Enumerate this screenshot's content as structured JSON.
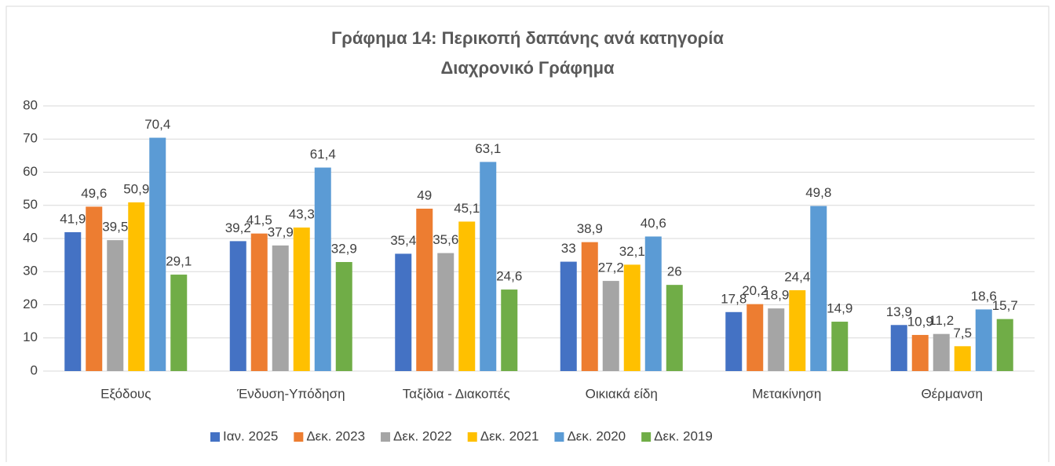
{
  "chart_data": {
    "type": "bar",
    "title": [
      "Γράφημα 14: Περικοπή δαπάνης ανά κατηγορία",
      "Διαχρονικό Γράφημα"
    ],
    "categories": [
      "Εξόδους",
      "Ένδυση-Υπόδηση",
      "Ταξίδια - Διακοπές",
      "Οικιακά είδη",
      "Μετακίνηση",
      "Θέρμανση"
    ],
    "series": [
      {
        "name": "Ιαν. 2025",
        "color": "#4472c4",
        "values": [
          41.9,
          39.2,
          35.4,
          33,
          17.8,
          13.9
        ],
        "value_labels": [
          "41,9",
          "39,2",
          "35,4",
          "33",
          "17,8",
          "13,9"
        ]
      },
      {
        "name": "Δεκ. 2023",
        "color": "#ed7d31",
        "values": [
          49.6,
          41.5,
          49,
          38.9,
          20.2,
          10.9
        ],
        "value_labels": [
          "49,6",
          "41,5",
          "49",
          "38,9",
          "20,2",
          "10,9"
        ]
      },
      {
        "name": "Δεκ. 2022",
        "color": "#a5a5a5",
        "values": [
          39.5,
          37.9,
          35.6,
          27.2,
          18.9,
          11.2
        ],
        "value_labels": [
          "39,5",
          "37,9",
          "35,6",
          "27,2",
          "18,9",
          "11,2"
        ]
      },
      {
        "name": "Δεκ. 2021",
        "color": "#ffc000",
        "values": [
          50.9,
          43.3,
          45.1,
          32.1,
          24.4,
          7.5
        ],
        "value_labels": [
          "50,9",
          "43,3",
          "45,1",
          "32,1",
          "24,4",
          "7,5"
        ]
      },
      {
        "name": "Δεκ. 2020",
        "color": "#5b9bd5",
        "values": [
          70.4,
          61.4,
          63.1,
          40.6,
          49.8,
          18.6
        ],
        "value_labels": [
          "70,4",
          "61,4",
          "63,1",
          "40,6",
          "49,8",
          "18,6"
        ]
      },
      {
        "name": "Δεκ. 2019",
        "color": "#70ad47",
        "values": [
          29.1,
          32.9,
          24.6,
          26,
          14.9,
          15.7
        ],
        "value_labels": [
          "29,1",
          "32,9",
          "24,6",
          "26",
          "14,9",
          "15,7"
        ]
      }
    ],
    "ylim": [
      0,
      80
    ],
    "yticks": [
      0,
      10,
      20,
      30,
      40,
      50,
      60,
      70,
      80
    ],
    "grid": true,
    "legend": "bottom"
  }
}
